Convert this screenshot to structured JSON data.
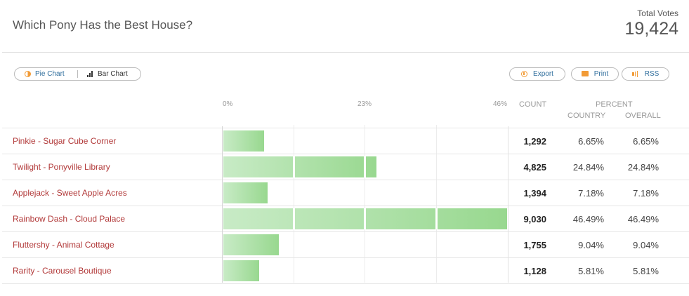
{
  "header": {
    "title": "Which Pony Has the Best House?",
    "total_label": "Total Votes",
    "total_value": "19,424"
  },
  "toolbar": {
    "pie_label": "Pie Chart",
    "bar_label": "Bar Chart",
    "export_label": "Export",
    "print_label": "Print",
    "rss_label": "RSS"
  },
  "columns": {
    "count": "COUNT",
    "percent": "PERCENT",
    "country": "COUNTRY",
    "overall": "OVERALL"
  },
  "chart_data": {
    "type": "bar",
    "orientation": "horizontal",
    "title": "Which Pony Has the Best House?",
    "x_ticks": [
      "0%",
      "23%",
      "46%"
    ],
    "xlim": [
      0,
      46
    ],
    "categories": [
      "Pinkie - Sugar Cube Corner",
      "Twilight - Ponyville Library",
      "Applejack - Sweet Apple Acres",
      "Rainbow Dash - Cloud Palace",
      "Fluttershy - Animal Cottage",
      "Rarity - Carousel Boutique"
    ],
    "values": [
      6.65,
      24.84,
      7.18,
      46.49,
      9.04,
      5.81
    ],
    "counts": [
      "1,292",
      "4,825",
      "1,394",
      "9,030",
      "1,755",
      "1,128"
    ],
    "percent_country": [
      "6.65%",
      "24.84%",
      "7.18%",
      "46.49%",
      "9.04%",
      "5.81%"
    ],
    "percent_overall": [
      "6.65%",
      "24.84%",
      "7.18%",
      "46.49%",
      "9.04%",
      "5.81%"
    ],
    "bar_color": "#98d88f",
    "label_color": "#b23a3a",
    "grid": true
  }
}
